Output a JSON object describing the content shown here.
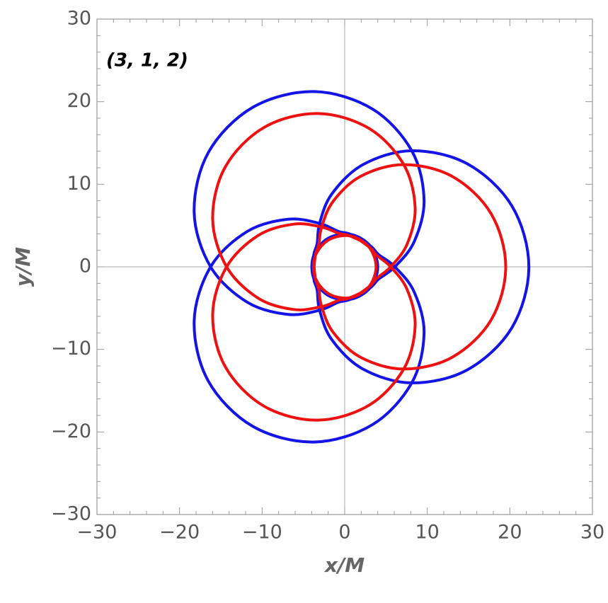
{
  "chart_data": {
    "type": "line",
    "annotation": "(3, 1, 2)",
    "xlabel": "x/M",
    "ylabel": "y/M",
    "xlim": [
      -30,
      30
    ],
    "ylim": [
      -30,
      30
    ],
    "xticks": [
      {
        "value": -30,
        "label": "−30"
      },
      {
        "value": -20,
        "label": "−20"
      },
      {
        "value": -10,
        "label": "−10"
      },
      0,
      10,
      20,
      30
    ],
    "yticks": [
      {
        "value": -30,
        "label": "−30"
      },
      {
        "value": -20,
        "label": "−20"
      },
      {
        "value": -10,
        "label": "−10"
      },
      0,
      10,
      20,
      30
    ],
    "minor_ticks": [
      -28,
      -26,
      -24,
      -22,
      -18,
      -16,
      -14,
      -12,
      -8,
      -6,
      -4,
      -2,
      2,
      4,
      6,
      8,
      12,
      14,
      16,
      18,
      22,
      24,
      26,
      28
    ],
    "crosshair": {
      "x": 0,
      "y": 0
    },
    "series": [
      {
        "color": "#1414e6",
        "x": [
          -3.34,
          -3.04,
          -1.56,
          2.18,
          8.12,
          14.86,
          20.25,
          22.3,
          20.25,
          14.86,
          8.12,
          2.18,
          -1.56,
          -3.04,
          -3.34,
          -3.76,
          -3.76,
          -2,
          0.69,
          3.06,
          4,
          3.06,
          0.69,
          -2,
          -3.76,
          -3.76,
          -2,
          0.69,
          3.06,
          4,
          3.06,
          0.69,
          -0.76,
          -3.04,
          -6.86,
          -11.79,
          -16.24,
          -18.23,
          -16.51,
          -11.15,
          -3.74,
          3.37,
          8.12,
          9.61,
          8.42,
          6.07,
          4.1,
          3.06,
          0.69,
          -2,
          -3.76,
          -3.76,
          -2,
          0.69,
          3.06,
          4,
          3.06,
          0.69,
          -2,
          -3.76,
          -3.76,
          -2,
          0.69,
          3.06,
          4.1,
          6.07,
          8.42,
          9.61,
          8.12,
          3.37,
          -3.74,
          -11.15,
          -16.51,
          -18.23,
          -16.24,
          -11.79,
          -6.86,
          -3.04,
          -0.76,
          0.69,
          3.06,
          4,
          3.06,
          0.69,
          -2,
          -3.76,
          -3.76,
          -2,
          0.69,
          3.06,
          4,
          3.06,
          0.69,
          -2,
          -3.76,
          -3.76
        ],
        "y": [
          -2.8,
          -5.26,
          -8.82,
          -12.36,
          -14.06,
          -12.47,
          -7.37,
          0,
          7.37,
          12.47,
          14.06,
          12.36,
          8.82,
          5.26,
          2.8,
          1.37,
          -1.37,
          -3.46,
          -3.94,
          -2.57,
          0,
          2.57,
          3.94,
          3.46,
          1.37,
          -1.37,
          -3.46,
          -3.94,
          -2.57,
          0,
          2.57,
          3.94,
          4.29,
          5.26,
          5.76,
          4.29,
          0,
          -6.63,
          -13.85,
          -19.31,
          -21.22,
          -19.11,
          -14.06,
          -8.07,
          -3.06,
          0,
          1.49,
          2.57,
          3.94,
          3.46,
          1.37,
          -1.37,
          -3.46,
          -3.94,
          -2.57,
          0,
          2.57,
          3.94,
          3.46,
          1.37,
          -1.37,
          -3.46,
          -3.94,
          -2.57,
          -1.49,
          0,
          3.06,
          8.07,
          14.06,
          19.11,
          21.22,
          19.31,
          13.85,
          6.63,
          0,
          -4.29,
          -5.76,
          -5.26,
          -4.29,
          -3.94,
          -2.57,
          0,
          2.57,
          3.94,
          3.46,
          1.37,
          -1.37,
          -3.46,
          -3.94,
          -2.57,
          0,
          2.57,
          3.94,
          3.46,
          1.37,
          -1.37
        ]
      },
      {
        "color": "#ee1111",
        "x": [
          -3.15,
          -2.79,
          -1.4,
          1.93,
          7.15,
          13.04,
          17.72,
          19.5,
          17.72,
          13.04,
          7.15,
          1.93,
          -1.4,
          -2.79,
          -3.15,
          -3.57,
          -3.57,
          -1.9,
          0.66,
          2.91,
          3.8,
          2.91,
          0.66,
          -1.9,
          -3.57,
          -3.57,
          -1.9,
          0.66,
          2.91,
          3.8,
          2.91,
          0.66,
          -0.71,
          -2.79,
          -6.17,
          -10.46,
          -14.3,
          -15.99,
          -14.45,
          -9.75,
          -3.27,
          2.95,
          7.15,
          8.53,
          7.56,
          5.57,
          3.86,
          2.91,
          0.66,
          -1.9,
          -3.57,
          -3.57,
          -1.9,
          0.66,
          2.91,
          3.8,
          2.91,
          0.66,
          -1.9,
          -3.57,
          -3.57,
          -1.9,
          0.66,
          2.91,
          3.86,
          5.57,
          7.56,
          8.53,
          7.15,
          2.95,
          -3.27,
          -9.75,
          -14.45,
          -15.99,
          -14.3,
          -10.46,
          -6.17,
          -2.79,
          -0.71,
          0.66,
          2.91,
          3.8,
          2.91,
          0.66,
          -1.9,
          -3.57,
          -3.57,
          -1.9,
          0.66,
          2.91,
          3.8,
          2.91,
          0.66,
          -1.9,
          -3.57,
          -3.57
        ],
        "y": [
          -2.64,
          -4.82,
          -7.93,
          -10.96,
          -12.38,
          -10.94,
          -6.45,
          0,
          6.45,
          10.94,
          12.38,
          10.96,
          7.93,
          4.82,
          2.64,
          1.3,
          -1.3,
          -3.29,
          -3.74,
          -2.44,
          0,
          2.44,
          3.74,
          3.29,
          1.3,
          -1.3,
          -3.29,
          -3.74,
          -2.44,
          0,
          2.44,
          3.74,
          4.05,
          4.82,
          5.17,
          3.81,
          0,
          -5.82,
          -12.12,
          -16.89,
          -18.57,
          -16.76,
          -12.38,
          -7.15,
          -2.75,
          0,
          1.41,
          2.44,
          3.74,
          3.29,
          1.3,
          -1.3,
          -3.29,
          -3.74,
          -2.44,
          0,
          2.44,
          3.74,
          3.29,
          1.3,
          -1.3,
          -3.29,
          -3.74,
          -2.44,
          -1.41,
          0,
          2.75,
          7.15,
          12.38,
          16.76,
          18.57,
          16.89,
          12.12,
          5.82,
          0,
          -3.81,
          -5.17,
          -4.82,
          -4.05,
          -3.74,
          -2.44,
          0,
          2.44,
          3.74,
          3.29,
          1.3,
          -1.3,
          -3.29,
          -3.74,
          -2.44,
          0,
          2.44,
          3.74,
          3.29,
          1.3,
          -1.3
        ]
      }
    ]
  }
}
